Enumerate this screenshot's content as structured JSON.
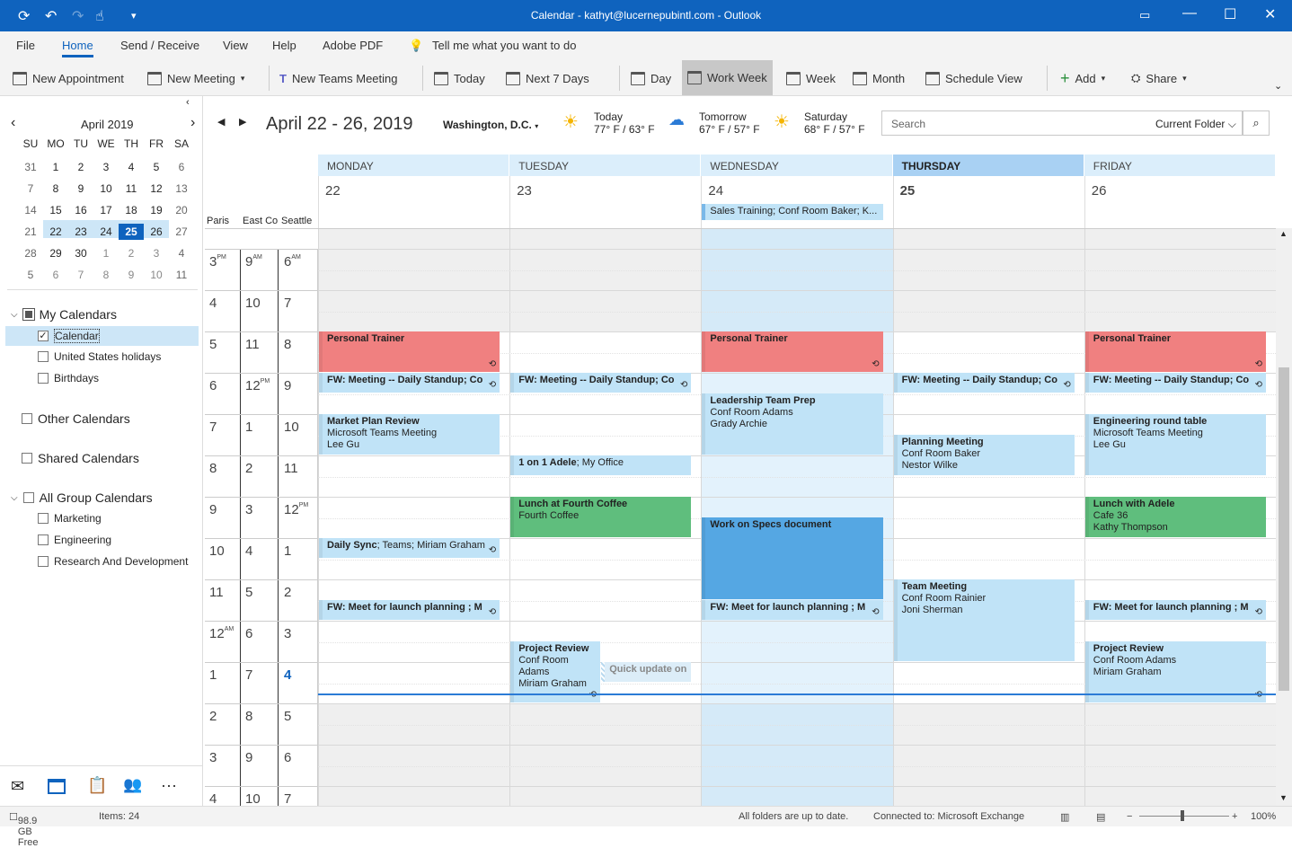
{
  "titlebar": {
    "title": "Calendar - kathyt@lucernepubintl.com  -  Outlook"
  },
  "menu": [
    "File",
    "Home",
    "Send / Receive",
    "View",
    "Help",
    "Adobe PDF"
  ],
  "tell_me": "Tell me what you want to do",
  "ribbon": {
    "new_appointment": "New Appointment",
    "new_meeting": "New Meeting",
    "new_teams": "New Teams Meeting",
    "today": "Today",
    "next7": "Next 7 Days",
    "day": "Day",
    "work_week": "Work Week",
    "week": "Week",
    "month": "Month",
    "schedule": "Schedule View",
    "add": "Add",
    "share": "Share"
  },
  "minical": {
    "title": "April 2019",
    "dow": [
      "SU",
      "MO",
      "TU",
      "WE",
      "TH",
      "FR",
      "SA"
    ],
    "weeks": [
      [
        "31",
        "1",
        "2",
        "3",
        "4",
        "5",
        "6"
      ],
      [
        "7",
        "8",
        "9",
        "10",
        "11",
        "12",
        "13"
      ],
      [
        "14",
        "15",
        "16",
        "17",
        "18",
        "19",
        "20"
      ],
      [
        "21",
        "22",
        "23",
        "24",
        "25",
        "26",
        "27"
      ],
      [
        "28",
        "29",
        "30",
        "1",
        "2",
        "3",
        "4"
      ],
      [
        "5",
        "6",
        "7",
        "8",
        "9",
        "10",
        "11"
      ]
    ],
    "today": "25"
  },
  "folders": {
    "my": "My Calendars",
    "calendar": "Calendar",
    "holidays": "United States holidays",
    "birthdays": "Birthdays",
    "other": "Other Calendars",
    "shared": "Shared Calendars",
    "group": "All Group Calendars",
    "marketing": "Marketing",
    "engineering": "Engineering",
    "rnd": "Research And Development"
  },
  "header": {
    "range": "April 22 - 26, 2019",
    "location": "Washington, D.C.",
    "weather": [
      {
        "label": "Today",
        "temp": "77° F / 63° F",
        "icon": "partly-sunny"
      },
      {
        "label": "Tomorrow",
        "temp": "67° F / 57° F",
        "icon": "rain"
      },
      {
        "label": "Saturday",
        "temp": "68° F / 57° F",
        "icon": "sunny"
      }
    ],
    "search_placeholder": "Search",
    "scope": "Current Folder"
  },
  "timezones": [
    "Paris",
    "East Co",
    "Seattle"
  ],
  "times": {
    "paris": [
      [
        "3",
        "PM"
      ],
      [
        "4",
        ""
      ],
      [
        "5",
        ""
      ],
      [
        "6",
        ""
      ],
      [
        "7",
        ""
      ],
      [
        "8",
        ""
      ],
      [
        "9",
        ""
      ],
      [
        "10",
        ""
      ],
      [
        "11",
        ""
      ],
      [
        "12",
        "AM"
      ],
      [
        "1",
        ""
      ],
      [
        "2",
        ""
      ],
      [
        "3",
        ""
      ],
      [
        "4",
        ""
      ]
    ],
    "east": [
      [
        "9",
        "AM"
      ],
      [
        "10",
        ""
      ],
      [
        "11",
        ""
      ],
      [
        "12",
        "PM"
      ],
      [
        "1",
        ""
      ],
      [
        "2",
        ""
      ],
      [
        "3",
        ""
      ],
      [
        "4",
        ""
      ],
      [
        "5",
        ""
      ],
      [
        "6",
        ""
      ],
      [
        "7",
        ""
      ],
      [
        "8",
        ""
      ],
      [
        "9",
        ""
      ],
      [
        "10",
        ""
      ]
    ],
    "seattle": [
      [
        "6",
        "AM"
      ],
      [
        "7",
        ""
      ],
      [
        "8",
        ""
      ],
      [
        "9",
        ""
      ],
      [
        "10",
        ""
      ],
      [
        "11",
        ""
      ],
      [
        "12",
        "PM"
      ],
      [
        "1",
        ""
      ],
      [
        "2",
        ""
      ],
      [
        "3",
        ""
      ],
      [
        "4",
        ""
      ],
      [
        "5",
        ""
      ],
      [
        "6",
        ""
      ],
      [
        "7",
        ""
      ]
    ]
  },
  "days": [
    {
      "name": "MONDAY",
      "date": "22"
    },
    {
      "name": "TUESDAY",
      "date": "23"
    },
    {
      "name": "WEDNESDAY",
      "date": "24"
    },
    {
      "name": "THURSDAY",
      "date": "25",
      "today": true
    },
    {
      "name": "FRIDAY",
      "date": "26"
    }
  ],
  "allday": [
    {
      "day": 2,
      "title": "Sales Training; Conf Room Baker; K..."
    }
  ],
  "colors": {
    "pink": "#f08080",
    "blue": "#c0e3f7",
    "green": "#5fbe7d",
    "dark": "#55a7e3",
    "accent": "#0f63be"
  },
  "events": [
    {
      "day": 0,
      "start": 8,
      "end": 9,
      "title": "Personal Trainer",
      "lines": [],
      "color": "pink",
      "sync": true
    },
    {
      "day": 0,
      "start": 9,
      "end": 9.5,
      "title": "FW: Meeting -- Daily Standup; Co",
      "lines": [],
      "color": "blue",
      "sync": true
    },
    {
      "day": 0,
      "start": 10,
      "end": 11,
      "title": "Market Plan Review",
      "lines": [
        "Microsoft Teams Meeting",
        "Lee Gu"
      ],
      "color": "blue"
    },
    {
      "day": 0,
      "start": 13,
      "end": 13.5,
      "title": "Daily Sync",
      "suffix": "; Teams; Miriam Graham",
      "lines": [],
      "color": "blue",
      "sync": true
    },
    {
      "day": 0,
      "start": 14.5,
      "end": 15,
      "title": "FW: Meet for launch planning ; M",
      "lines": [],
      "color": "blue",
      "sync": true
    },
    {
      "day": 1,
      "start": 9,
      "end": 9.5,
      "title": "FW: Meeting -- Daily Standup; Co",
      "lines": [],
      "color": "blue",
      "sync": true
    },
    {
      "day": 1,
      "start": 11,
      "end": 11.5,
      "title": "1 on 1 Adele",
      "suffix": "; My Office",
      "lines": [],
      "color": "blue"
    },
    {
      "day": 1,
      "start": 12,
      "end": 13,
      "title": "Lunch at Fourth Coffee",
      "lines": [
        "Fourth Coffee"
      ],
      "color": "green"
    },
    {
      "day": 1,
      "start": 15.5,
      "end": 17,
      "title": "Project Review",
      "lines": [
        "Conf Room",
        "Adams",
        "Miriam Graham"
      ],
      "color": "blue",
      "half": "left",
      "sync": true
    },
    {
      "day": 1,
      "start": 16,
      "end": 16.5,
      "title": "Quick update on",
      "lines": [],
      "color": "tentative",
      "half": "right"
    },
    {
      "day": 2,
      "start": 8,
      "end": 9,
      "title": "Personal Trainer",
      "lines": [],
      "color": "pink",
      "sync": true
    },
    {
      "day": 2,
      "start": 9.5,
      "end": 11,
      "title": "Leadership Team Prep",
      "lines": [
        "Conf Room Adams",
        "Grady Archie"
      ],
      "color": "blue"
    },
    {
      "day": 2,
      "start": 12.5,
      "end": 14.5,
      "title": "Work on Specs document",
      "lines": [],
      "color": "dark"
    },
    {
      "day": 2,
      "start": 14.5,
      "end": 15,
      "title": "FW: Meet for launch planning ; M",
      "lines": [],
      "color": "blue",
      "sync": true
    },
    {
      "day": 3,
      "start": 9,
      "end": 9.5,
      "title": "FW: Meeting -- Daily Standup; Co",
      "lines": [],
      "color": "blue",
      "sync": true
    },
    {
      "day": 3,
      "start": 10.5,
      "end": 11.5,
      "title": "Planning Meeting",
      "lines": [
        "Conf Room Baker",
        "Nestor Wilke"
      ],
      "color": "blue"
    },
    {
      "day": 3,
      "start": 14,
      "end": 16,
      "title": "Team Meeting",
      "lines": [
        "Conf Room Rainier",
        "Joni Sherman"
      ],
      "color": "blue"
    },
    {
      "day": 4,
      "start": 8,
      "end": 9,
      "title": "Personal Trainer",
      "lines": [],
      "color": "pink",
      "sync": true
    },
    {
      "day": 4,
      "start": 9,
      "end": 9.5,
      "title": "FW: Meeting -- Daily Standup; Co",
      "lines": [],
      "color": "blue",
      "sync": true
    },
    {
      "day": 4,
      "start": 10,
      "end": 11.5,
      "title": "Engineering round table",
      "lines": [
        "Microsoft Teams Meeting",
        "Lee Gu"
      ],
      "color": "blue"
    },
    {
      "day": 4,
      "start": 12,
      "end": 13,
      "title": "Lunch with Adele",
      "lines": [
        "Cafe 36",
        "Kathy Thompson"
      ],
      "color": "green"
    },
    {
      "day": 4,
      "start": 14.5,
      "end": 15,
      "title": "FW: Meet for launch planning ; M",
      "lines": [],
      "color": "blue",
      "sync": true
    },
    {
      "day": 4,
      "start": 15.5,
      "end": 17,
      "title": "Project Review",
      "lines": [
        "Conf Room Adams",
        "Miriam Graham"
      ],
      "color": "blue",
      "sync": true
    }
  ],
  "status": {
    "free": "98.9 GB Free",
    "items": "Items: 24",
    "sync": "All folders are up to date.",
    "conn": "Connected to: Microsoft Exchange",
    "zoom": "100%"
  }
}
